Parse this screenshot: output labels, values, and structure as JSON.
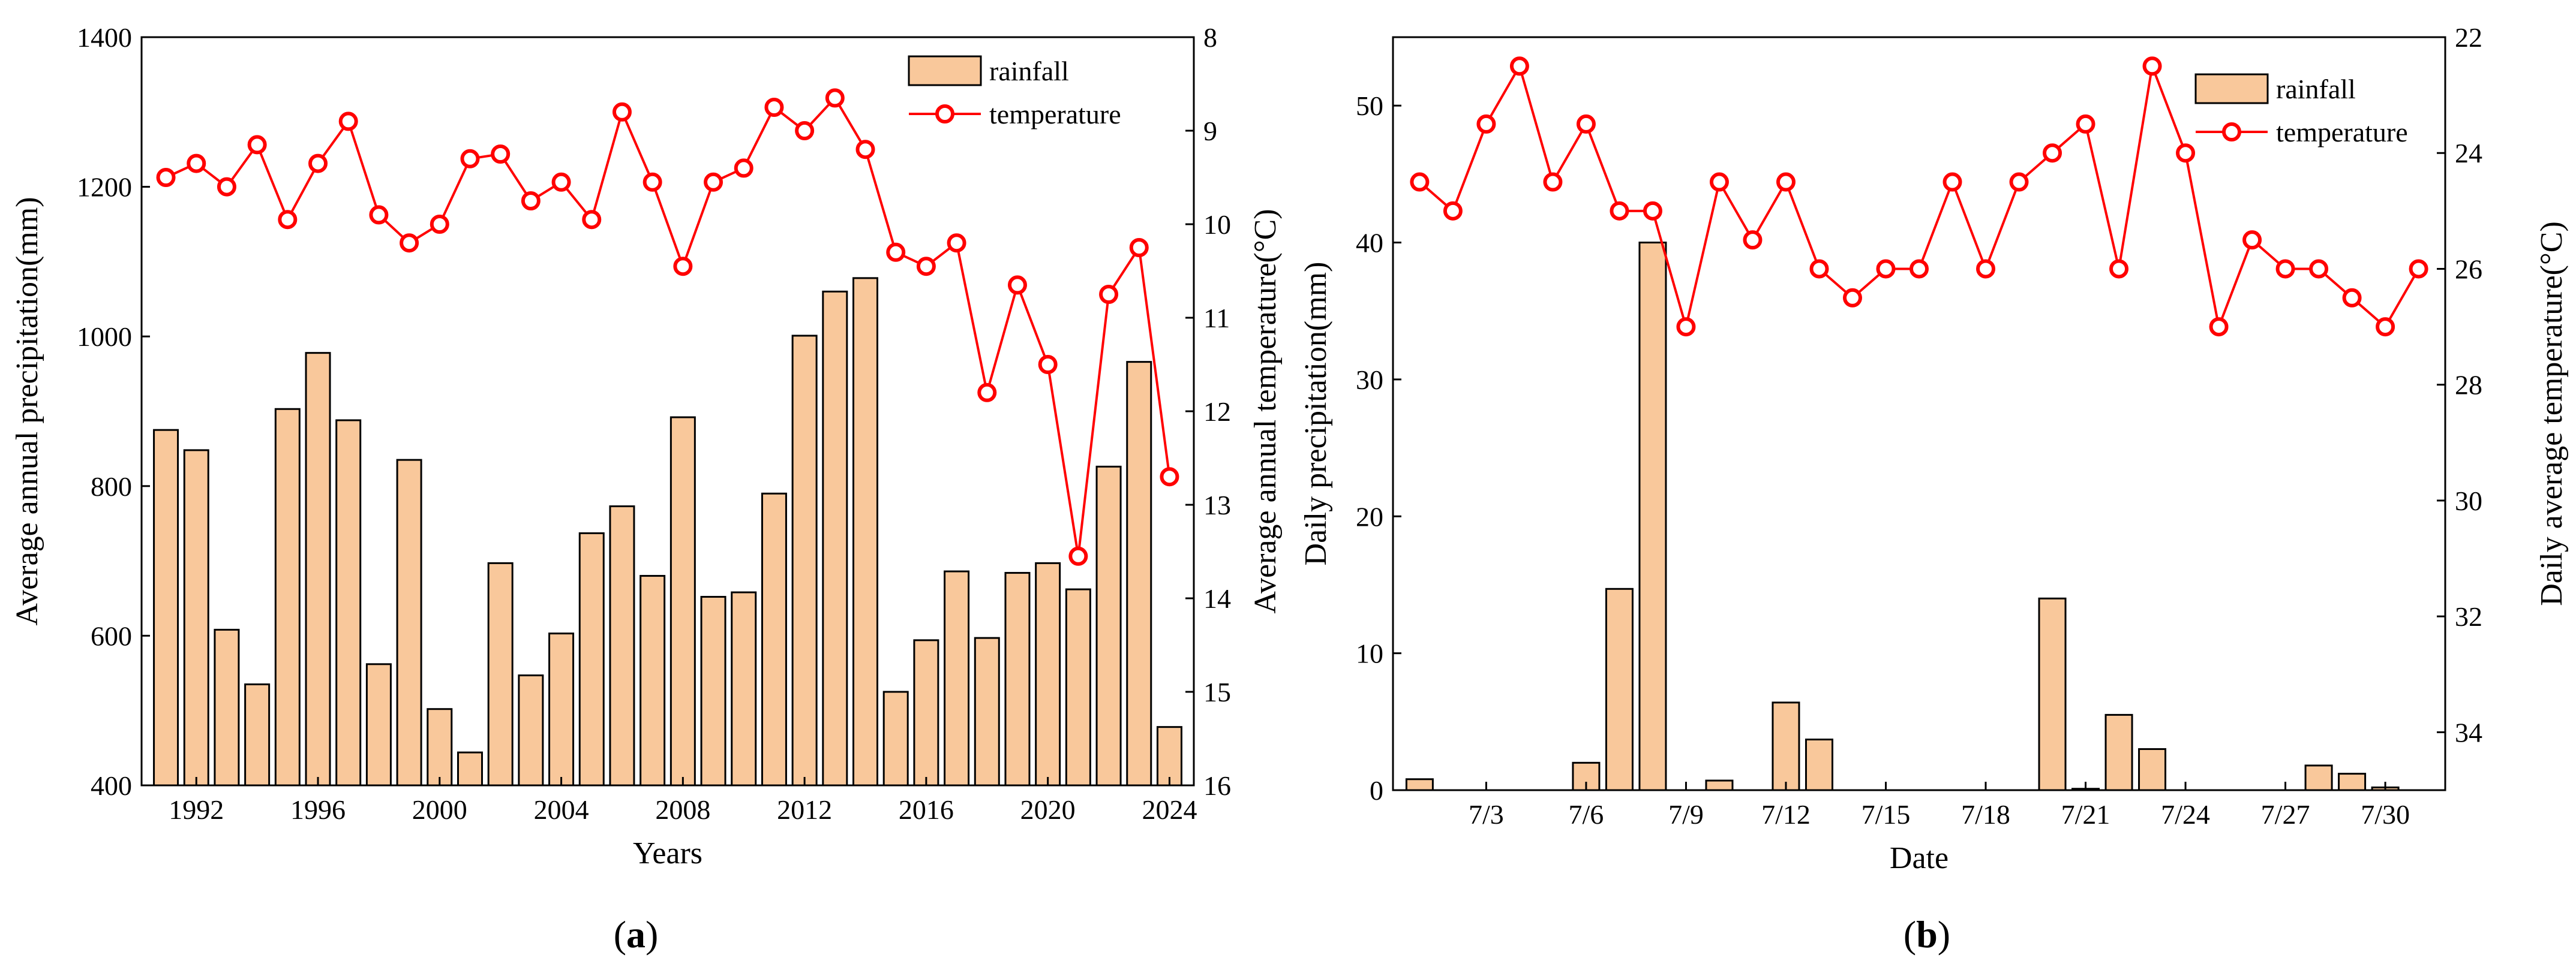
{
  "colors": {
    "bar_fill": "#F9C89B",
    "bar_stroke": "#000000",
    "temp_line": "#FF0000"
  },
  "chart_data": [
    {
      "type": "bar+line",
      "caption": {
        "open": "(",
        "letter": "a",
        "close": ")"
      },
      "xlabel": "Years",
      "ylabel_left": "Average annual precipitation(mm)",
      "ylabel_right": "Average annual temperature(°C)",
      "ylim_left": [
        400,
        1400
      ],
      "yticks_left": [
        400,
        600,
        800,
        1000,
        1200,
        1400
      ],
      "ylim_right": [
        16,
        8
      ],
      "yticks_right": [
        8,
        9,
        10,
        11,
        12,
        13,
        14,
        15,
        16
      ],
      "xlim": [
        1990.2,
        2024.8
      ],
      "xticks": [
        1992,
        1996,
        2000,
        2004,
        2008,
        2012,
        2016,
        2020,
        2024
      ],
      "legend": {
        "bar": "rainfall",
        "line": "temperature",
        "position": "top-right"
      },
      "x": [
        1991,
        1992,
        1993,
        1994,
        1995,
        1996,
        1997,
        1998,
        1999,
        2000,
        2001,
        2002,
        2003,
        2004,
        2005,
        2006,
        2007,
        2008,
        2009,
        2010,
        2011,
        2012,
        2013,
        2014,
        2015,
        2016,
        2017,
        2018,
        2019,
        2020,
        2021,
        2022,
        2023,
        2024
      ],
      "series": [
        {
          "name": "rainfall",
          "kind": "bar",
          "values": [
            875,
            848,
            608,
            535,
            903,
            978,
            888,
            562,
            835,
            502,
            444,
            697,
            547,
            603,
            737,
            773,
            680,
            892,
            652,
            658,
            790,
            1001,
            1060,
            1078,
            525,
            594,
            686,
            597,
            684,
            697,
            662,
            826,
            966,
            478
          ]
        },
        {
          "name": "temperature",
          "kind": "line",
          "values": [
            9.5,
            9.35,
            9.6,
            9.15,
            9.95,
            9.35,
            8.9,
            9.9,
            10.2,
            10.0,
            9.3,
            9.25,
            9.75,
            9.55,
            9.95,
            8.8,
            9.55,
            10.45,
            9.55,
            9.4,
            8.75,
            9.0,
            8.65,
            9.2,
            10.3,
            10.45,
            10.2,
            11.8,
            10.65,
            11.5,
            13.55,
            10.75,
            10.25,
            12.7
          ]
        }
      ]
    },
    {
      "type": "bar+line",
      "caption": {
        "open": "(",
        "letter": "b",
        "close": ")"
      },
      "xlabel": "Date",
      "ylabel_left": "Daily precipitation(mm)",
      "ylabel_right": "Daily average temperature(°C)",
      "ylim_left": [
        0,
        55
      ],
      "yticks_left": [
        0,
        10,
        20,
        30,
        40,
        50
      ],
      "ylim_right": [
        35,
        22
      ],
      "yticks_right": [
        22,
        24,
        26,
        28,
        30,
        32,
        34
      ],
      "xlim": [
        0.2,
        31.8
      ],
      "xticks": [
        3,
        6,
        9,
        12,
        15,
        18,
        21,
        24,
        27,
        30
      ],
      "xtick_labels": [
        "7/3",
        "7/6",
        "7/9",
        "7/12",
        "7/15",
        "7/18",
        "7/21",
        "7/24",
        "7/27",
        "7/30"
      ],
      "legend": {
        "bar": "rainfall",
        "line": "temperature",
        "position": "top-right"
      },
      "x": [
        1,
        2,
        3,
        4,
        5,
        6,
        7,
        8,
        9,
        10,
        11,
        12,
        13,
        14,
        15,
        16,
        17,
        18,
        19,
        20,
        21,
        22,
        23,
        24,
        25,
        26,
        27,
        28,
        29,
        30,
        31
      ],
      "series": [
        {
          "name": "rainfall",
          "kind": "bar",
          "values": [
            0.8,
            0,
            0,
            0,
            0,
            2.0,
            14.7,
            40.0,
            0,
            0.7,
            0,
            6.4,
            3.7,
            0,
            0,
            0,
            0,
            0,
            0,
            14.0,
            0.1,
            5.5,
            3.0,
            0,
            0,
            0,
            0,
            1.8,
            1.2,
            0.2,
            0
          ]
        },
        {
          "name": "temperature",
          "kind": "line",
          "values": [
            24.5,
            25.0,
            23.5,
            22.5,
            24.5,
            23.5,
            25.0,
            25.0,
            27.0,
            24.5,
            25.5,
            24.5,
            26.0,
            26.5,
            26.0,
            26.0,
            24.5,
            26.0,
            24.5,
            24.0,
            23.5,
            26.0,
            22.5,
            24.0,
            27.0,
            25.5,
            26.0,
            26.0,
            26.5,
            27.0,
            26.0
          ]
        }
      ]
    }
  ]
}
